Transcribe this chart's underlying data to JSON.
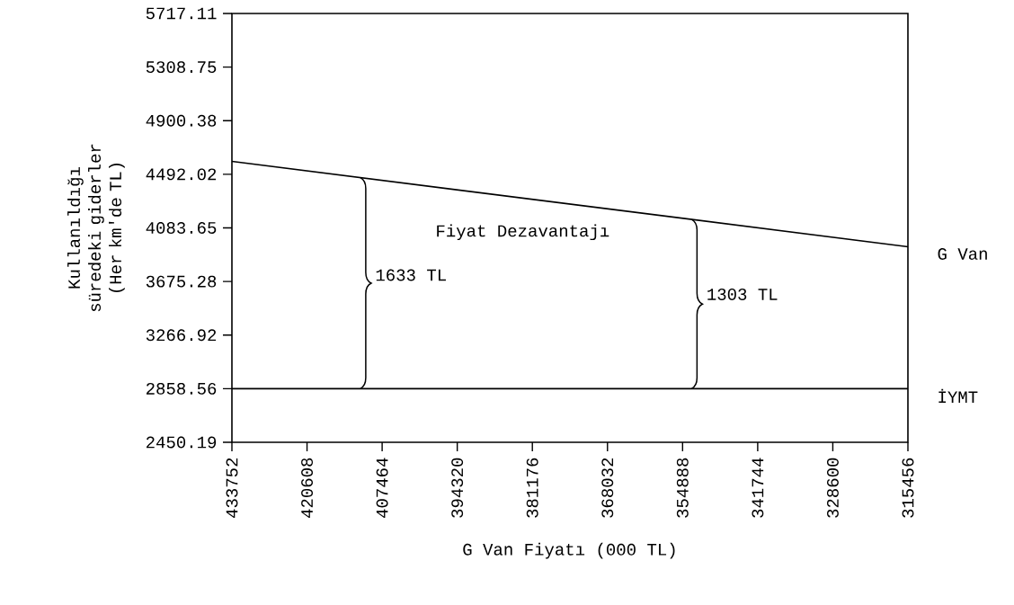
{
  "chart_data": {
    "type": "line",
    "xlabel": "G Van Fiyatı (000 TL)",
    "ylabel": "Kullanıldığı süredeki giderler (Her km'de TL)",
    "xlim": [
      433752,
      315456
    ],
    "xticks": [
      433752,
      420608,
      407464,
      394320,
      381176,
      368032,
      354888,
      341744,
      328600,
      315456
    ],
    "ylim": [
      2450.19,
      5717.11
    ],
    "yticks": [
      2450.19,
      2858.56,
      3266.92,
      3675.28,
      4083.65,
      4492.02,
      4900.38,
      5308.75,
      5717.11
    ],
    "x": [
      433752,
      315456
    ],
    "series": [
      {
        "name": "G Van",
        "color": "#000000",
        "values": [
          4590,
          3940
        ]
      },
      {
        "name": "İYMT",
        "color": "#000000",
        "values": [
          2858.56,
          2858.56
        ]
      }
    ],
    "annotations": [
      "Fiyat Dezavantajı",
      "1633 TL",
      "1303 TL"
    ],
    "grid": false,
    "marker": "none",
    "line_style": "solid"
  }
}
